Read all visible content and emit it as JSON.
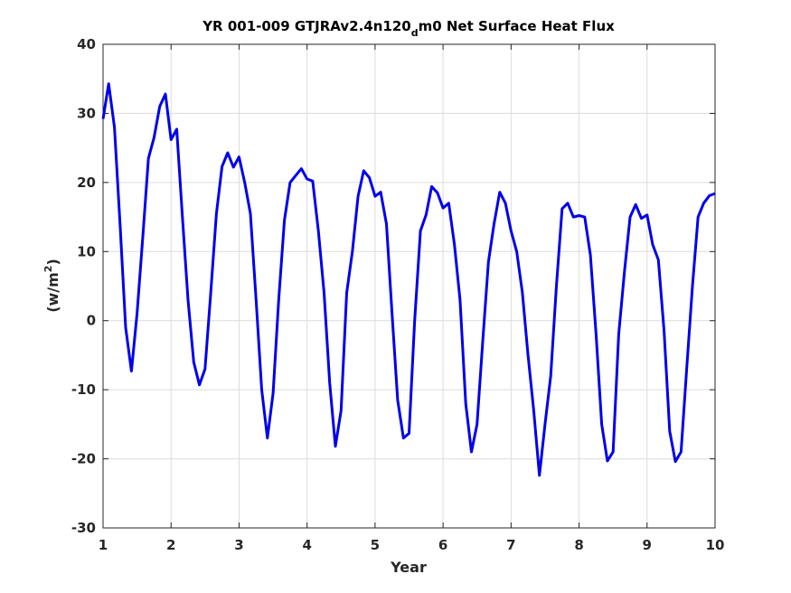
{
  "chart_data": {
    "type": "line",
    "title_main": "YR 001-009 GTJRAv2.4n120",
    "title_sub": "d",
    "title_rest": "m0 Net Surface Heat Flux",
    "xlabel": "Year",
    "ylabel_base": "(w/m",
    "ylabel_sup": "2",
    "ylabel_end": ")",
    "xlim": [
      1,
      10
    ],
    "ylim": [
      -30,
      40
    ],
    "xticks": [
      1,
      2,
      3,
      4,
      5,
      6,
      7,
      8,
      9,
      10
    ],
    "xtick_labels": [
      "1",
      "2",
      "3",
      "4",
      "5",
      "6",
      "7",
      "8",
      "9",
      "10"
    ],
    "yticks": [
      -30,
      -20,
      -10,
      0,
      10,
      20,
      30,
      40
    ],
    "ytick_labels": [
      "-30",
      "-20",
      "-10",
      "0",
      "10",
      "20",
      "30",
      "40"
    ],
    "grid": true,
    "line_color": "#0000ee",
    "series": [
      {
        "x": [
          1.0,
          1.083,
          1.167,
          1.25,
          1.333,
          1.417,
          1.5,
          1.583,
          1.667,
          1.75,
          1.833,
          1.917,
          2.0,
          2.083,
          2.167,
          2.25,
          2.333,
          2.417,
          2.5,
          2.583,
          2.667,
          2.75,
          2.833,
          2.917,
          3.0,
          3.083,
          3.167,
          3.25,
          3.333,
          3.417,
          3.5,
          3.583,
          3.667,
          3.75,
          3.833,
          3.917,
          4.0,
          4.083,
          4.167,
          4.25,
          4.333,
          4.417,
          4.5,
          4.583,
          4.667,
          4.75,
          4.833,
          4.917,
          5.0,
          5.083,
          5.167,
          5.25,
          5.333,
          5.417,
          5.5,
          5.583,
          5.667,
          5.75,
          5.833,
          5.917,
          6.0,
          6.083,
          6.167,
          6.25,
          6.333,
          6.417,
          6.5,
          6.583,
          6.667,
          6.75,
          6.833,
          6.917,
          7.0,
          7.083,
          7.167,
          7.25,
          7.333,
          7.417,
          7.5,
          7.583,
          7.667,
          7.75,
          7.833,
          7.917,
          8.0,
          8.083,
          8.167,
          8.25,
          8.333,
          8.417,
          8.5,
          8.583,
          8.667,
          8.75,
          8.833,
          8.917,
          9.0,
          9.083,
          9.167,
          9.25,
          9.333,
          9.417,
          9.5,
          9.583,
          9.667,
          9.75,
          9.833,
          9.917,
          10.0
        ],
        "y": [
          29.2,
          34.3,
          28.0,
          14.0,
          -1.0,
          -7.3,
          1.0,
          12.0,
          23.5,
          26.5,
          31.0,
          32.8,
          26.2,
          27.7,
          15.0,
          3.0,
          -6.0,
          -9.3,
          -7.0,
          4.0,
          15.5,
          22.3,
          24.3,
          22.2,
          23.7,
          20.0,
          15.5,
          3.0,
          -10.0,
          -17.0,
          -10.5,
          3.0,
          14.5,
          20.0,
          21.0,
          22.0,
          20.5,
          20.2,
          13.0,
          4.0,
          -9.0,
          -18.2,
          -13.0,
          4.0,
          10.0,
          18.0,
          21.7,
          20.7,
          18.0,
          18.6,
          14.0,
          1.0,
          -11.5,
          -17.0,
          -16.3,
          0.0,
          13.0,
          15.3,
          19.4,
          18.5,
          16.3,
          17.0,
          11.0,
          3.0,
          -12.0,
          -19.0,
          -15.0,
          -3.0,
          8.5,
          14.0,
          18.6,
          17.0,
          13.0,
          10.0,
          4.0,
          -5.0,
          -13.0,
          -22.4,
          -15.0,
          -8.0,
          5.0,
          16.2,
          17.0,
          15.0,
          15.2,
          15.0,
          9.5,
          -2.0,
          -15.0,
          -20.3,
          -19.0,
          -2.0,
          7.0,
          15.0,
          16.8,
          14.8,
          15.3,
          11.0,
          8.8,
          -1.5,
          -16.0,
          -20.4,
          -19.0,
          -7.0,
          5.0,
          15.0,
          17.0,
          18.1,
          18.4
        ]
      }
    ]
  }
}
